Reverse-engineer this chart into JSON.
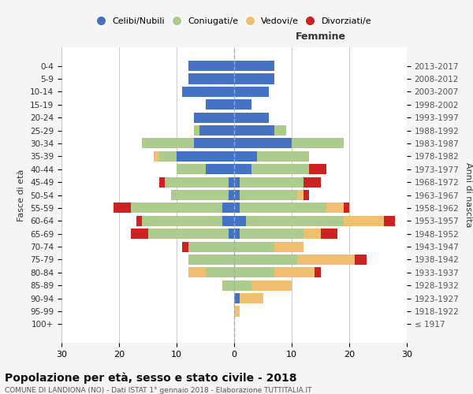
{
  "age_groups": [
    "100+",
    "95-99",
    "90-94",
    "85-89",
    "80-84",
    "75-79",
    "70-74",
    "65-69",
    "60-64",
    "55-59",
    "50-54",
    "45-49",
    "40-44",
    "35-39",
    "30-34",
    "25-29",
    "20-24",
    "15-19",
    "10-14",
    "5-9",
    "0-4"
  ],
  "birth_years": [
    "≤ 1917",
    "1918-1922",
    "1923-1927",
    "1928-1932",
    "1933-1937",
    "1938-1942",
    "1943-1947",
    "1948-1952",
    "1953-1957",
    "1958-1962",
    "1963-1967",
    "1968-1972",
    "1973-1977",
    "1978-1982",
    "1983-1987",
    "1988-1992",
    "1993-1997",
    "1998-2002",
    "2003-2007",
    "2008-2012",
    "2013-2017"
  ],
  "colors": {
    "celibi": "#4472C4",
    "coniugati": "#AECB8E",
    "vedovi": "#F0C070",
    "divorziati": "#CC2222"
  },
  "males": {
    "celibi": [
      0,
      0,
      0,
      0,
      0,
      0,
      0,
      1,
      2,
      2,
      1,
      1,
      5,
      10,
      7,
      6,
      7,
      5,
      9,
      8,
      8
    ],
    "coniugati": [
      0,
      0,
      0,
      2,
      5,
      8,
      8,
      14,
      14,
      16,
      10,
      11,
      5,
      3,
      9,
      1,
      0,
      0,
      0,
      0,
      0
    ],
    "vedovi": [
      0,
      0,
      0,
      0,
      3,
      0,
      0,
      0,
      0,
      0,
      0,
      0,
      0,
      1,
      0,
      0,
      0,
      0,
      0,
      0,
      0
    ],
    "divorziati": [
      0,
      0,
      0,
      0,
      0,
      0,
      1,
      3,
      1,
      3,
      0,
      1,
      0,
      0,
      0,
      0,
      0,
      0,
      0,
      0,
      0
    ]
  },
  "females": {
    "celibi": [
      0,
      0,
      1,
      0,
      0,
      0,
      0,
      1,
      2,
      1,
      1,
      1,
      3,
      4,
      10,
      7,
      6,
      3,
      6,
      7,
      7
    ],
    "coniugati": [
      0,
      0,
      0,
      3,
      7,
      11,
      7,
      11,
      17,
      15,
      10,
      11,
      10,
      9,
      9,
      2,
      0,
      0,
      0,
      0,
      0
    ],
    "vedovi": [
      0,
      1,
      4,
      7,
      7,
      10,
      5,
      3,
      7,
      3,
      1,
      0,
      0,
      0,
      0,
      0,
      0,
      0,
      0,
      0,
      0
    ],
    "divorziati": [
      0,
      0,
      0,
      0,
      1,
      2,
      0,
      3,
      2,
      1,
      1,
      3,
      3,
      0,
      0,
      0,
      0,
      0,
      0,
      0,
      0
    ]
  },
  "xlim": 30,
  "title": "Popolazione per età, sesso e stato civile - 2018",
  "subtitle": "COMUNE DI LANDIONA (NO) - Dati ISTAT 1° gennaio 2018 - Elaborazione TUTTITALIA.IT",
  "ylabel_left": "Fasce di età",
  "ylabel_right": "Anni di nascita",
  "xlabel_right": "Femmine",
  "bg_color": "#f5f5f5",
  "plot_bg": "#ffffff"
}
